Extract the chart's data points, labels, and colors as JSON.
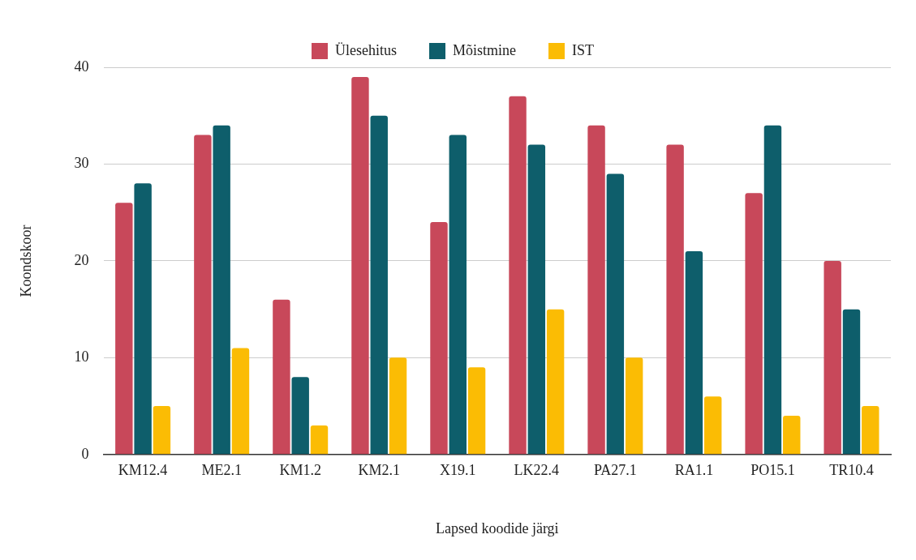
{
  "chart_data": {
    "type": "bar",
    "xlabel": "Lapsed koodide järgi",
    "ylabel": "Koondskoor",
    "categories": [
      "KM12.4",
      "ME2.1",
      "KM1.2",
      "KM2.1",
      "X19.1",
      "LK22.4",
      "PA27.1",
      "RA1.1",
      "PO15.1",
      "TR10.4"
    ],
    "series": [
      {
        "name": "Ülesehitus",
        "color": "#c8485a",
        "values": [
          26,
          33,
          16,
          39,
          24,
          37,
          34,
          32,
          27,
          20
        ]
      },
      {
        "name": "Mõistmine",
        "color": "#0e5e6b",
        "values": [
          28,
          34,
          8,
          35,
          33,
          32,
          29,
          21,
          34,
          15
        ]
      },
      {
        "name": "IST",
        "color": "#fbbc04",
        "values": [
          5,
          11,
          3,
          10,
          9,
          15,
          10,
          6,
          4,
          5
        ]
      }
    ],
    "ylim": [
      0,
      40
    ],
    "yticks": [
      0,
      10,
      20,
      30,
      40
    ],
    "grid": "y",
    "legend": "top"
  }
}
